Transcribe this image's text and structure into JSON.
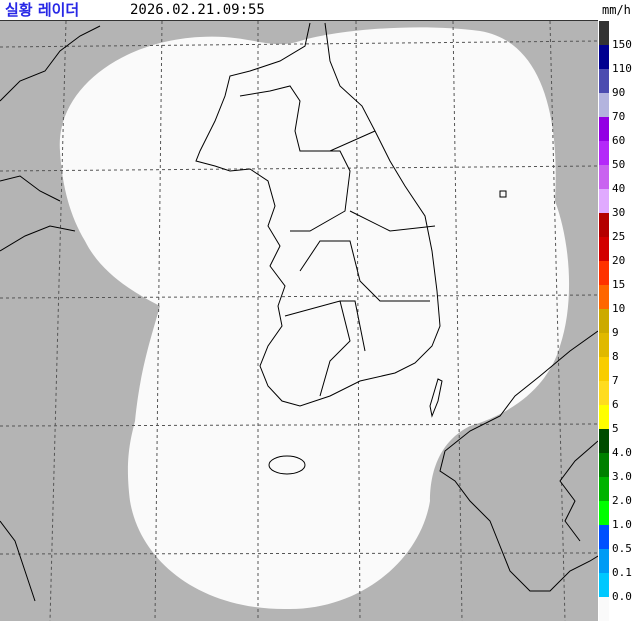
{
  "header": {
    "title": "실황 레이더",
    "timestamp": "2026.02.21.09:55",
    "unit": "mm/h"
  },
  "map": {
    "background_color": "#b4b4b4",
    "coverage_color": "#fafafa",
    "coastline_color": "#000000",
    "grid_color": "#555555",
    "precipitation_visible": false
  },
  "legend": {
    "labels": [
      "150",
      "110",
      "90",
      "70",
      "60",
      "50",
      "40",
      "30",
      "25",
      "20",
      "15",
      "10",
      "9",
      "8",
      "7",
      "6",
      "5",
      "4.0",
      "3.0",
      "2.0",
      "1.0",
      "0.5",
      "0.1",
      "0.0"
    ],
    "colors": [
      "#333333",
      "#000090",
      "#4c4cb0",
      "#b3b4de",
      "#9300e4",
      "#b429f9",
      "#c963f0",
      "#e0aaff",
      "#b40000",
      "#d20000",
      "#ff3200",
      "#ff6600",
      "#ccaa00",
      "#e0b900",
      "#f9cd00",
      "#ffdc1f",
      "#ffff00",
      "#004c00",
      "#008000",
      "#00b300",
      "#00ff00",
      "#0050ff",
      "#009bf5",
      "#00c8ff",
      "#fafafa"
    ]
  }
}
